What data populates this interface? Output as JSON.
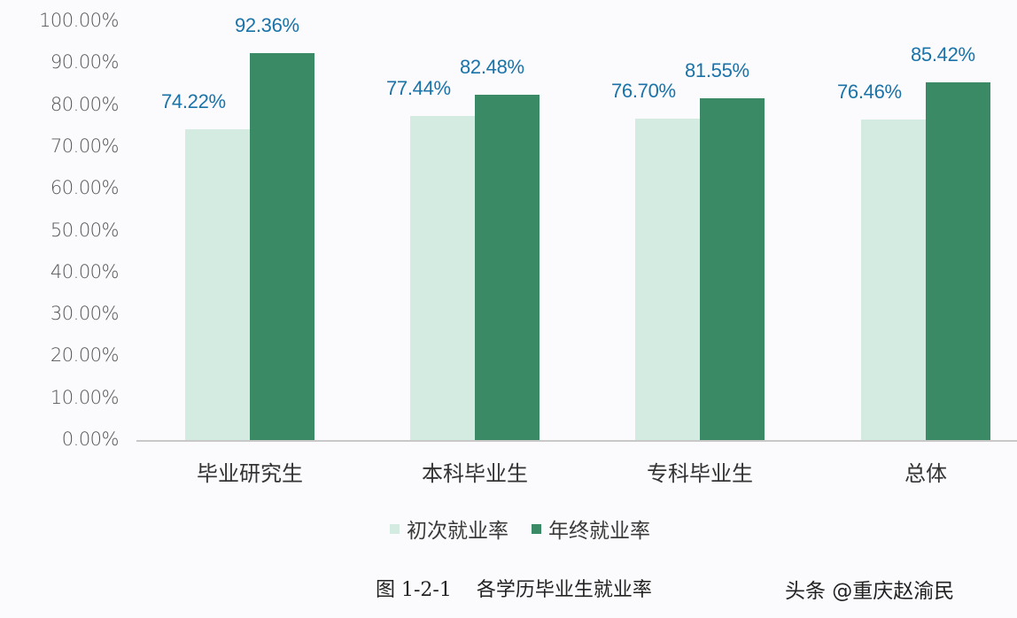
{
  "chart_data": {
    "type": "bar",
    "title": "各学历毕业生就业率",
    "figure_number": "图 1-2-1",
    "xlabel": "",
    "ylabel": "",
    "ylim": [
      0,
      100
    ],
    "yticks": [
      "0.00%",
      "10.00%",
      "20.00%",
      "30.00%",
      "40.00%",
      "50.00%",
      "60.00%",
      "70.00%",
      "80.00%",
      "90.00%",
      "100.00%"
    ],
    "categories": [
      "毕业研究生",
      "本科毕业生",
      "专科毕业生",
      "总体"
    ],
    "series": [
      {
        "name": "初次就业率",
        "color": "#d4ebe2",
        "values": [
          74.22,
          77.44,
          76.7,
          76.46
        ],
        "labels": [
          "74.22%",
          "77.44%",
          "76.70%",
          "76.46%"
        ]
      },
      {
        "name": "年终就业率",
        "color": "#3a8a66",
        "values": [
          92.36,
          82.48,
          81.55,
          85.42
        ],
        "labels": [
          "92.36%",
          "82.48%",
          "81.55%",
          "85.42%"
        ]
      }
    ],
    "grid": false,
    "legend_position": "bottom",
    "data_label_color": "#1a73a8"
  },
  "caption": "图 1-2-1    各学历毕业生就业率",
  "watermark": "头条 @重庆赵渝民"
}
